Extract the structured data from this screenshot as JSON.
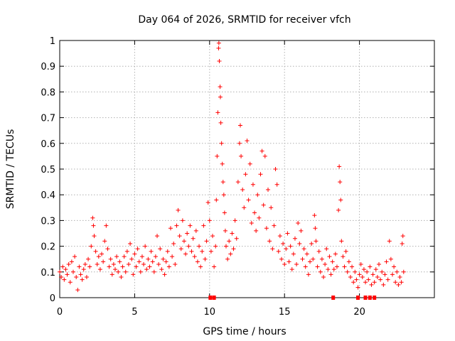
{
  "chart_data": {
    "type": "scatter",
    "title": "Day 064 of 2026, SRMTID for receiver vfch",
    "xlabel": "GPS time / hours",
    "ylabel": "SRMTID / TECUs",
    "xlim": [
      0,
      25
    ],
    "ylim": [
      0,
      1
    ],
    "xticks": [
      0,
      5,
      10,
      15,
      20
    ],
    "yticks": [
      0,
      0.1,
      0.2,
      0.3,
      0.4,
      0.5,
      0.6,
      0.7,
      0.8,
      0.9,
      1
    ],
    "x_tick_labels": [
      "0",
      "5",
      "10",
      "15",
      "20"
    ],
    "y_tick_labels": [
      "0",
      "0.1",
      "0.2",
      "0.3",
      "0.4",
      "0.5",
      "0.6",
      "0.7",
      "0.8",
      "0.9",
      "1"
    ],
    "grid": true,
    "marker": "plus",
    "color": "#ff0000",
    "series": [
      {
        "name": "SRMTID",
        "points": [
          [
            0.0,
            0.1
          ],
          [
            0.1,
            0.08
          ],
          [
            0.2,
            0.12
          ],
          [
            0.3,
            0.07
          ],
          [
            0.4,
            0.11
          ],
          [
            0.5,
            0.09
          ],
          [
            0.6,
            0.13
          ],
          [
            0.7,
            0.06
          ],
          [
            0.8,
            0.14
          ],
          [
            0.9,
            0.1
          ],
          [
            1.0,
            0.16
          ],
          [
            1.1,
            0.08
          ],
          [
            1.2,
            0.03
          ],
          [
            1.3,
            0.12
          ],
          [
            1.4,
            0.09
          ],
          [
            1.5,
            0.07
          ],
          [
            1.6,
            0.11
          ],
          [
            1.7,
            0.13
          ],
          [
            1.8,
            0.08
          ],
          [
            1.9,
            0.15
          ],
          [
            2.0,
            0.12
          ],
          [
            2.1,
            0.2
          ],
          [
            2.2,
            0.31
          ],
          [
            2.25,
            0.28
          ],
          [
            2.3,
            0.24
          ],
          [
            2.4,
            0.18
          ],
          [
            2.5,
            0.13
          ],
          [
            2.6,
            0.16
          ],
          [
            2.7,
            0.11
          ],
          [
            2.8,
            0.17
          ],
          [
            2.9,
            0.14
          ],
          [
            3.0,
            0.22
          ],
          [
            3.1,
            0.28
          ],
          [
            3.2,
            0.19
          ],
          [
            3.3,
            0.12
          ],
          [
            3.4,
            0.15
          ],
          [
            3.5,
            0.09
          ],
          [
            3.6,
            0.13
          ],
          [
            3.7,
            0.11
          ],
          [
            3.8,
            0.16
          ],
          [
            3.9,
            0.1
          ],
          [
            4.0,
            0.14
          ],
          [
            4.1,
            0.08
          ],
          [
            4.2,
            0.12
          ],
          [
            4.3,
            0.16
          ],
          [
            4.4,
            0.1
          ],
          [
            4.5,
            0.18
          ],
          [
            4.6,
            0.13
          ],
          [
            4.7,
            0.21
          ],
          [
            4.8,
            0.15
          ],
          [
            4.9,
            0.09
          ],
          [
            5.0,
            0.17
          ],
          [
            5.1,
            0.12
          ],
          [
            5.2,
            0.19
          ],
          [
            5.3,
            0.14
          ],
          [
            5.4,
            0.1
          ],
          [
            5.5,
            0.16
          ],
          [
            5.6,
            0.13
          ],
          [
            5.7,
            0.2
          ],
          [
            5.8,
            0.11
          ],
          [
            5.9,
            0.15
          ],
          [
            6.0,
            0.12
          ],
          [
            6.1,
            0.18
          ],
          [
            6.2,
            0.14
          ],
          [
            6.3,
            0.1
          ],
          [
            6.4,
            0.16
          ],
          [
            6.5,
            0.24
          ],
          [
            6.6,
            0.13
          ],
          [
            6.7,
            0.19
          ],
          [
            6.8,
            0.11
          ],
          [
            6.9,
            0.15
          ],
          [
            7.0,
            0.09
          ],
          [
            7.1,
            0.14
          ],
          [
            7.2,
            0.18
          ],
          [
            7.3,
            0.12
          ],
          [
            7.4,
            0.27
          ],
          [
            7.5,
            0.16
          ],
          [
            7.6,
            0.21
          ],
          [
            7.7,
            0.13
          ],
          [
            7.8,
            0.28
          ],
          [
            7.9,
            0.34
          ],
          [
            8.0,
            0.24
          ],
          [
            8.1,
            0.19
          ],
          [
            8.2,
            0.3
          ],
          [
            8.3,
            0.22
          ],
          [
            8.4,
            0.17
          ],
          [
            8.5,
            0.25
          ],
          [
            8.6,
            0.2
          ],
          [
            8.7,
            0.28
          ],
          [
            8.8,
            0.18
          ],
          [
            8.9,
            0.23
          ],
          [
            9.0,
            0.16
          ],
          [
            9.1,
            0.26
          ],
          [
            9.2,
            0.14
          ],
          [
            9.3,
            0.2
          ],
          [
            9.4,
            0.12
          ],
          [
            9.5,
            0.18
          ],
          [
            9.6,
            0.28
          ],
          [
            9.7,
            0.15
          ],
          [
            9.8,
            0.22
          ],
          [
            9.9,
            0.37
          ],
          [
            10.0,
            0.3
          ],
          [
            10.1,
            0.18
          ],
          [
            10.2,
            0.24
          ],
          [
            10.3,
            0.12
          ],
          [
            10.4,
            0.2
          ],
          [
            10.45,
            0.38
          ],
          [
            10.5,
            0.55
          ],
          [
            10.55,
            0.72
          ],
          [
            10.6,
            0.97
          ],
          [
            10.62,
            0.99
          ],
          [
            10.65,
            0.92
          ],
          [
            10.7,
            0.82
          ],
          [
            10.72,
            0.78
          ],
          [
            10.75,
            0.68
          ],
          [
            10.8,
            0.6
          ],
          [
            10.85,
            0.52
          ],
          [
            10.9,
            0.45
          ],
          [
            10.95,
            0.4
          ],
          [
            11.0,
            0.33
          ],
          [
            11.05,
            0.26
          ],
          [
            11.1,
            0.2
          ],
          [
            11.2,
            0.15
          ],
          [
            11.3,
            0.22
          ],
          [
            11.4,
            0.17
          ],
          [
            11.5,
            0.25
          ],
          [
            11.6,
            0.19
          ],
          [
            11.7,
            0.3
          ],
          [
            11.8,
            0.23
          ],
          [
            11.9,
            0.45
          ],
          [
            12.0,
            0.6
          ],
          [
            12.05,
            0.67
          ],
          [
            12.1,
            0.55
          ],
          [
            12.2,
            0.42
          ],
          [
            12.3,
            0.35
          ],
          [
            12.4,
            0.48
          ],
          [
            12.5,
            0.61
          ],
          [
            12.6,
            0.38
          ],
          [
            12.7,
            0.52
          ],
          [
            12.8,
            0.29
          ],
          [
            12.9,
            0.44
          ],
          [
            13.0,
            0.33
          ],
          [
            13.1,
            0.26
          ],
          [
            13.2,
            0.4
          ],
          [
            13.3,
            0.31
          ],
          [
            13.4,
            0.48
          ],
          [
            13.5,
            0.57
          ],
          [
            13.6,
            0.36
          ],
          [
            13.7,
            0.55
          ],
          [
            13.8,
            0.27
          ],
          [
            13.9,
            0.42
          ],
          [
            14.0,
            0.22
          ],
          [
            14.1,
            0.35
          ],
          [
            14.2,
            0.19
          ],
          [
            14.3,
            0.28
          ],
          [
            14.4,
            0.5
          ],
          [
            14.5,
            0.44
          ],
          [
            14.6,
            0.18
          ],
          [
            14.7,
            0.24
          ],
          [
            14.8,
            0.15
          ],
          [
            14.9,
            0.21
          ],
          [
            15.0,
            0.13
          ],
          [
            15.1,
            0.19
          ],
          [
            15.2,
            0.25
          ],
          [
            15.3,
            0.14
          ],
          [
            15.4,
            0.2
          ],
          [
            15.5,
            0.11
          ],
          [
            15.6,
            0.17
          ],
          [
            15.7,
            0.23
          ],
          [
            15.8,
            0.13
          ],
          [
            15.9,
            0.29
          ],
          [
            16.0,
            0.21
          ],
          [
            16.1,
            0.26
          ],
          [
            16.2,
            0.15
          ],
          [
            16.3,
            0.19
          ],
          [
            16.4,
            0.12
          ],
          [
            16.5,
            0.17
          ],
          [
            16.6,
            0.09
          ],
          [
            16.7,
            0.14
          ],
          [
            16.8,
            0.21
          ],
          [
            16.9,
            0.15
          ],
          [
            17.0,
            0.32
          ],
          [
            17.05,
            0.27
          ],
          [
            17.1,
            0.22
          ],
          [
            17.2,
            0.12
          ],
          [
            17.3,
            0.18
          ],
          [
            17.4,
            0.1
          ],
          [
            17.5,
            0.15
          ],
          [
            17.6,
            0.08
          ],
          [
            17.7,
            0.13
          ],
          [
            17.8,
            0.19
          ],
          [
            17.9,
            0.11
          ],
          [
            18.0,
            0.16
          ],
          [
            18.1,
            0.09
          ],
          [
            18.2,
            0.14
          ],
          [
            18.3,
            0.11
          ],
          [
            18.4,
            0.17
          ],
          [
            18.5,
            0.12
          ],
          [
            18.6,
            0.34
          ],
          [
            18.65,
            0.51
          ],
          [
            18.7,
            0.45
          ],
          [
            18.75,
            0.38
          ],
          [
            18.8,
            0.22
          ],
          [
            18.9,
            0.16
          ],
          [
            19.0,
            0.12
          ],
          [
            19.1,
            0.18
          ],
          [
            19.2,
            0.1
          ],
          [
            19.3,
            0.14
          ],
          [
            19.4,
            0.08
          ],
          [
            19.5,
            0.12
          ],
          [
            19.6,
            0.06
          ],
          [
            19.7,
            0.1
          ],
          [
            19.8,
            0.07
          ],
          [
            19.9,
            0.04
          ],
          [
            20.0,
            0.09
          ],
          [
            20.1,
            0.13
          ],
          [
            20.2,
            0.08
          ],
          [
            20.3,
            0.11
          ],
          [
            20.4,
            0.06
          ],
          [
            20.5,
            0.1
          ],
          [
            20.6,
            0.07
          ],
          [
            20.7,
            0.12
          ],
          [
            20.8,
            0.05
          ],
          [
            20.9,
            0.09
          ],
          [
            21.0,
            0.06
          ],
          [
            21.1,
            0.11
          ],
          [
            21.2,
            0.08
          ],
          [
            21.3,
            0.13
          ],
          [
            21.4,
            0.07
          ],
          [
            21.5,
            0.1
          ],
          [
            21.6,
            0.05
          ],
          [
            21.7,
            0.09
          ],
          [
            21.8,
            0.14
          ],
          [
            21.9,
            0.07
          ],
          [
            22.0,
            0.22
          ],
          [
            22.1,
            0.15
          ],
          [
            22.2,
            0.09
          ],
          [
            22.3,
            0.12
          ],
          [
            22.4,
            0.06
          ],
          [
            22.5,
            0.1
          ],
          [
            22.6,
            0.05
          ],
          [
            22.7,
            0.08
          ],
          [
            22.8,
            0.06
          ],
          [
            22.85,
            0.21
          ],
          [
            22.9,
            0.24
          ],
          [
            22.95,
            0.1
          ]
        ]
      }
    ],
    "zero_markers": [
      10.05,
      10.3,
      18.25,
      19.9,
      20.4,
      20.7,
      21.0
    ]
  }
}
